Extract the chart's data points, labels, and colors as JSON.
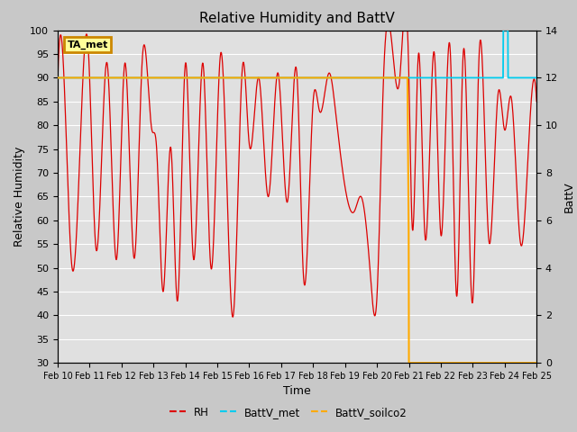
{
  "title": "Relative Humidity and BattV",
  "ylabel_left": "Relative Humidity",
  "ylabel_right": "BattV",
  "xlabel": "Time",
  "ylim_left": [
    30,
    100
  ],
  "ylim_right": [
    0,
    14
  ],
  "fig_bg_color": "#c8c8c8",
  "plot_bg_color": "#e0e0e0",
  "legend_label": "TA_met",
  "legend_bg": "#ffff99",
  "legend_border": "#cc8800",
  "rh_color": "#dd0000",
  "battv_met_color": "#00ccee",
  "battv_soilco2_color": "#ffaa00",
  "tick_labels": [
    "Feb 10",
    "Feb 11",
    "Feb 12",
    "Feb 13",
    "Feb 14",
    "Feb 15",
    "Feb 16",
    "Feb 17",
    "Feb 18",
    "Feb 19",
    "Feb 20",
    "Feb 21",
    "Feb 22",
    "Feb 23",
    "Feb 24",
    "Feb 25"
  ],
  "yticks_left": [
    30,
    35,
    40,
    45,
    50,
    55,
    60,
    65,
    70,
    75,
    80,
    85,
    90,
    95,
    100
  ],
  "yticks_right": [
    0,
    2,
    4,
    6,
    8,
    10,
    12,
    14
  ]
}
